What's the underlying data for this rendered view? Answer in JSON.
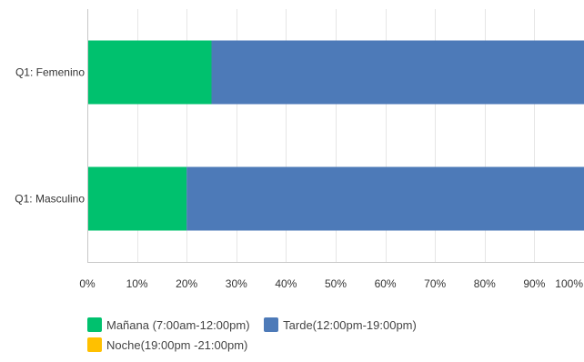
{
  "chart_data": {
    "type": "bar",
    "orientation": "horizontal",
    "stacked": true,
    "categories": [
      "Q1: Femenino",
      "Q1: Masculino"
    ],
    "series": [
      {
        "name": "Mañana (7:00am-12:00pm)",
        "color": "#00c16e",
        "values": [
          25,
          20
        ]
      },
      {
        "name": "Tarde(12:00pm-19:00pm)",
        "color": "#4d7ab8",
        "values": [
          75,
          80
        ]
      },
      {
        "name": "Noche(19:00pm -21:00pm)",
        "color": "#ffc000",
        "values": [
          0,
          0
        ]
      }
    ],
    "xticks": [
      "0%",
      "10%",
      "20%",
      "30%",
      "40%",
      "50%",
      "60%",
      "70%",
      "80%",
      "90%",
      "100%"
    ],
    "xlim": [
      0,
      100
    ],
    "grid": true,
    "legend_position": "bottom-left",
    "title": "",
    "xlabel": "",
    "ylabel": ""
  }
}
